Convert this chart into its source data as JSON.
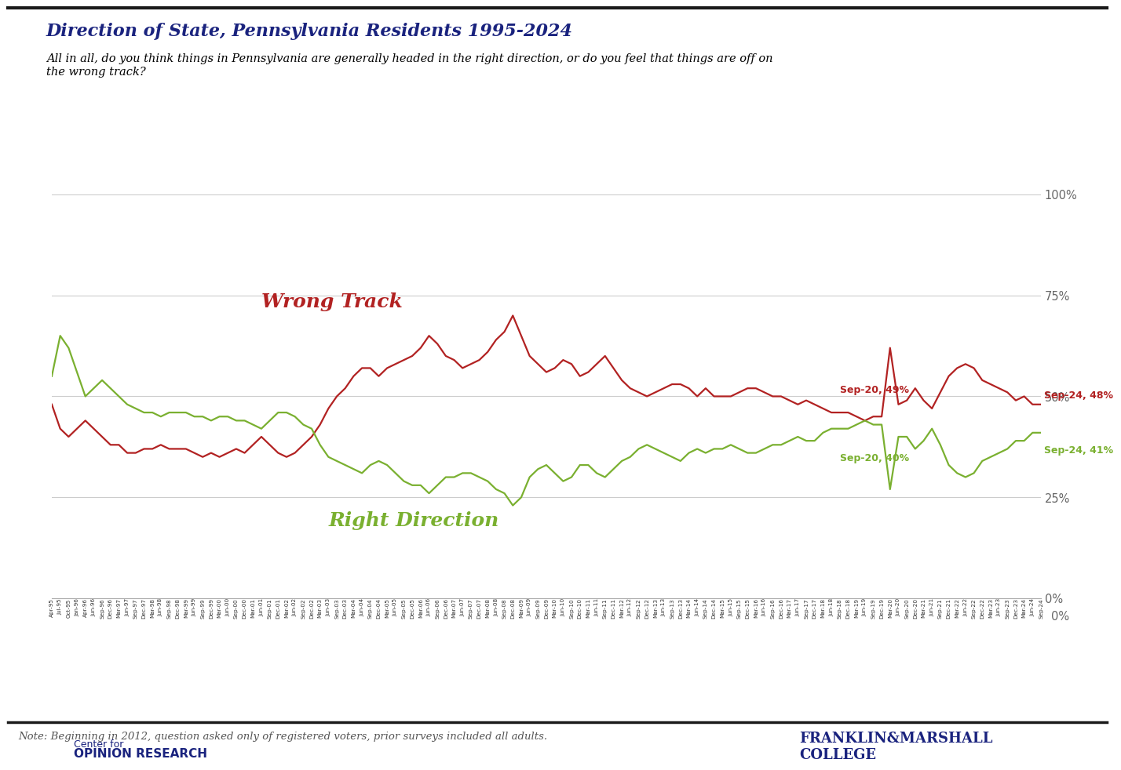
{
  "title": "Direction of State, Pennsylvania Residents 1995-2024",
  "subtitle": "All in all, do you think things in Pennsylvania are generally headed in the right direction, or do you feel that things are off on\nthe wrong track?",
  "note": "Note: Beginning in 2012, question asked only of registered voters, prior surveys included all adults.",
  "wrong_track_label": "Wrong Track",
  "right_direction_label": "Right Direction",
  "wrong_track_color": "#b22222",
  "right_direction_color": "#7ab030",
  "annotation_sep20_wrong": "Sep-20, 49%",
  "annotation_sep20_right": "Sep-20, 40%",
  "annotation_sep24_wrong": "Sep-24, 48%",
  "annotation_sep24_right": "Sep-24, 41%",
  "title_color": "#1a237e",
  "note_color": "#555555",
  "logo_color": "#1a237e",
  "background_color": "#ffffff",
  "grid_color": "#cccccc",
  "dates": [
    "Apr-95",
    "Jul-95",
    "Oct-95",
    "Jan-96",
    "Apr-96",
    "Jun-96",
    "Sep-96",
    "Dec-96",
    "Mar-97",
    "Jun-97",
    "Sep-97",
    "Dec-97",
    "Mar-98",
    "Jun-98",
    "Sep-98",
    "Dec-98",
    "Mar-99",
    "Jun-99",
    "Sep-99",
    "Dec-99",
    "Mar-00",
    "Jun-00",
    "Sep-00",
    "Dec-00",
    "Mar-01",
    "Jun-01",
    "Sep-01",
    "Dec-01",
    "Mar-02",
    "Jun-02",
    "Sep-02",
    "Dec-02",
    "Mar-03",
    "Jun-03",
    "Sep-03",
    "Dec-03",
    "Mar-04",
    "Jun-04",
    "Sep-04",
    "Dec-04",
    "Mar-05",
    "Jun-05",
    "Sep-05",
    "Dec-05",
    "Mar-06",
    "Jun-06",
    "Sep-06",
    "Dec-06",
    "Mar-07",
    "Jun-07",
    "Sep-07",
    "Dec-07",
    "Mar-08",
    "Jun-08",
    "Sep-08",
    "Dec-08",
    "Mar-09",
    "Jun-09",
    "Sep-09",
    "Dec-09",
    "Mar-10",
    "Jun-10",
    "Sep-10",
    "Dec-10",
    "Mar-11",
    "Jun-11",
    "Sep-11",
    "Dec-11",
    "Mar-12",
    "Jun-12",
    "Sep-12",
    "Dec-12",
    "Mar-13",
    "Jun-13",
    "Sep-13",
    "Dec-13",
    "Mar-14",
    "Jun-14",
    "Sep-14",
    "Dec-14",
    "Mar-15",
    "Jun-15",
    "Sep-15",
    "Dec-15",
    "Mar-16",
    "Jun-16",
    "Sep-16",
    "Dec-16",
    "Mar-17",
    "Jun-17",
    "Sep-17",
    "Dec-17",
    "Mar-18",
    "Jun-18",
    "Sep-18",
    "Dec-18",
    "Mar-19",
    "Jun-19",
    "Sep-19",
    "Dec-19",
    "Mar-20",
    "Jun-20",
    "Sep-20",
    "Dec-20",
    "Mar-21",
    "Jun-21",
    "Sep-21",
    "Dec-21",
    "Mar-22",
    "Jun-22",
    "Sep-22",
    "Dec-22",
    "Mar-23",
    "Jun-23",
    "Sep-23",
    "Dec-23",
    "Mar-24",
    "Jun-24",
    "Sep-24"
  ],
  "wrong_track": [
    48,
    42,
    40,
    42,
    44,
    42,
    40,
    38,
    38,
    36,
    36,
    37,
    37,
    38,
    37,
    37,
    37,
    36,
    35,
    36,
    35,
    36,
    37,
    36,
    38,
    40,
    38,
    36,
    35,
    36,
    38,
    40,
    43,
    47,
    50,
    52,
    55,
    57,
    57,
    55,
    57,
    58,
    59,
    60,
    62,
    65,
    63,
    60,
    59,
    57,
    58,
    59,
    61,
    64,
    66,
    70,
    65,
    60,
    58,
    56,
    57,
    59,
    58,
    55,
    56,
    58,
    60,
    57,
    54,
    52,
    51,
    50,
    51,
    52,
    53,
    53,
    52,
    50,
    52,
    50,
    50,
    50,
    51,
    52,
    52,
    51,
    50,
    50,
    49,
    48,
    49,
    48,
    47,
    46,
    46,
    46,
    45,
    44,
    45,
    45,
    62,
    48,
    49,
    52,
    49,
    47,
    51,
    55,
    57,
    58,
    57,
    54,
    53,
    52,
    51,
    49,
    50,
    48,
    48
  ],
  "right_direction": [
    55,
    65,
    62,
    56,
    50,
    52,
    54,
    52,
    50,
    48,
    47,
    46,
    46,
    45,
    46,
    46,
    46,
    45,
    45,
    44,
    45,
    45,
    44,
    44,
    43,
    42,
    44,
    46,
    46,
    45,
    43,
    42,
    38,
    35,
    34,
    33,
    32,
    31,
    33,
    34,
    33,
    31,
    29,
    28,
    28,
    26,
    28,
    30,
    30,
    31,
    31,
    30,
    29,
    27,
    26,
    23,
    25,
    30,
    32,
    33,
    31,
    29,
    30,
    33,
    33,
    31,
    30,
    32,
    34,
    35,
    37,
    38,
    37,
    36,
    35,
    34,
    36,
    37,
    36,
    37,
    37,
    38,
    37,
    36,
    36,
    37,
    38,
    38,
    39,
    40,
    39,
    39,
    41,
    42,
    42,
    42,
    43,
    44,
    43,
    43,
    27,
    40,
    40,
    37,
    39,
    42,
    38,
    33,
    31,
    30,
    31,
    34,
    35,
    36,
    37,
    39,
    39,
    41,
    41
  ]
}
